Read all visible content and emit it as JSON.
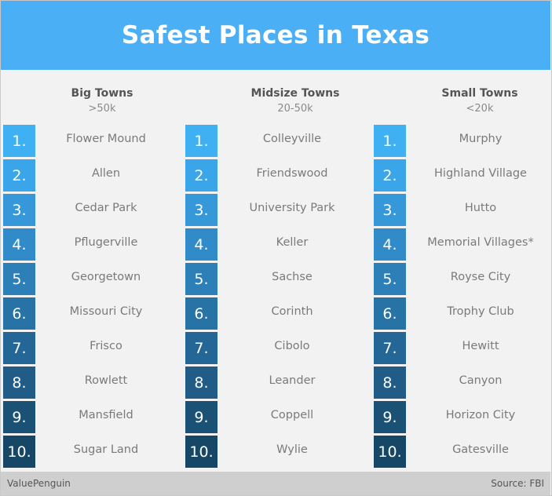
{
  "title": "Safest Places in Texas",
  "badge_colors": [
    "#3fb0f2",
    "#3aa5e8",
    "#3698d9",
    "#318bc8",
    "#2d7fb8",
    "#2873a6",
    "#246796",
    "#205c86",
    "#1c5176",
    "#174767"
  ],
  "columns": [
    {
      "name": "Big Towns",
      "sub": ">50k",
      "items": [
        {
          "rank": "1.",
          "town": "Flower Mound"
        },
        {
          "rank": "2.",
          "town": "Allen"
        },
        {
          "rank": "3.",
          "town": "Cedar Park"
        },
        {
          "rank": "4.",
          "town": "Pflugerville"
        },
        {
          "rank": "5.",
          "town": "Georgetown"
        },
        {
          "rank": "6.",
          "town": "Missouri City"
        },
        {
          "rank": "7.",
          "town": "Frisco"
        },
        {
          "rank": "8.",
          "town": "Rowlett"
        },
        {
          "rank": "9.",
          "town": "Mansfield"
        },
        {
          "rank": "10.",
          "town": "Sugar Land"
        }
      ]
    },
    {
      "name": "Midsize Towns",
      "sub": "20-50k",
      "items": [
        {
          "rank": "1.",
          "town": "Colleyville"
        },
        {
          "rank": "2.",
          "town": "Friendswood"
        },
        {
          "rank": "3.",
          "town": "University Park"
        },
        {
          "rank": "4.",
          "town": "Keller"
        },
        {
          "rank": "5.",
          "town": "Sachse"
        },
        {
          "rank": "6.",
          "town": "Corinth"
        },
        {
          "rank": "7.",
          "town": "Cibolo"
        },
        {
          "rank": "8.",
          "town": "Leander"
        },
        {
          "rank": "9.",
          "town": "Coppell"
        },
        {
          "rank": "10.",
          "town": "Wylie"
        }
      ]
    },
    {
      "name": "Small Towns",
      "sub": "<20k",
      "items": [
        {
          "rank": "1.",
          "town": "Murphy"
        },
        {
          "rank": "2.",
          "town": "Highland Village"
        },
        {
          "rank": "3.",
          "town": "Hutto"
        },
        {
          "rank": "4.",
          "town": "Memorial Villages*"
        },
        {
          "rank": "5.",
          "town": "Royse City"
        },
        {
          "rank": "6.",
          "town": "Trophy Club"
        },
        {
          "rank": "7.",
          "town": "Hewitt"
        },
        {
          "rank": "8.",
          "town": "Canyon"
        },
        {
          "rank": "9.",
          "town": "Horizon City"
        },
        {
          "rank": "10.",
          "town": "Gatesville"
        }
      ]
    }
  ],
  "footer": {
    "left": "ValuePenguin",
    "right": "Source: FBI"
  }
}
